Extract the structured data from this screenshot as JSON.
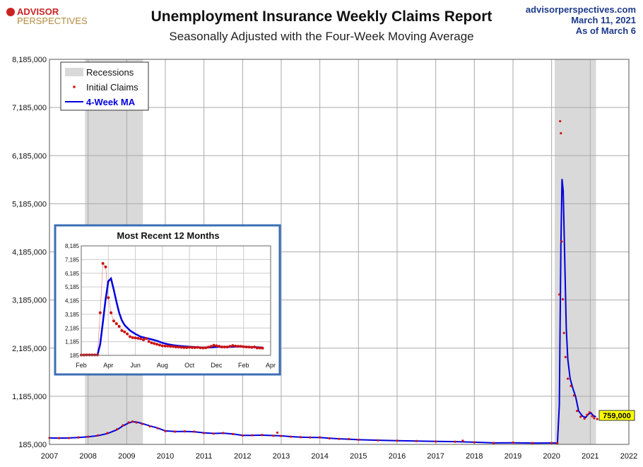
{
  "header": {
    "logo_top": "ADVISOR",
    "logo_bottom": "PERSPECTIVES",
    "title": "Unemployment Insurance Weekly Claims Report",
    "subtitle": "Seasonally Adjusted with the Four-Week Moving Average",
    "site": "advisorperspectives.com",
    "date": "March 11, 2021",
    "as_of": "As of March 6"
  },
  "colors": {
    "claims": "#cc1111",
    "ma": "#0000dd",
    "recession": "#d9d9d9",
    "callout_bg": "#ffff00",
    "site_text": "#1c3a8a",
    "inset_border": "#3a6fb5"
  },
  "chart_data": [
    {
      "type": "line",
      "title": "Unemployment Insurance Weekly Claims Report",
      "subtitle": "Seasonally Adjusted with the Four-Week Moving Average",
      "xlabel": "",
      "ylabel": "",
      "xlim": [
        2007,
        2022
      ],
      "ylim": [
        185000,
        8185000
      ],
      "x_ticks": [
        "2007",
        "2008",
        "2009",
        "2010",
        "2011",
        "2012",
        "2013",
        "2014",
        "2015",
        "2016",
        "2017",
        "2018",
        "2019",
        "2020",
        "2021",
        "2022"
      ],
      "y_ticks": [
        "185,000",
        "1,185,000",
        "2,185,000",
        "3,185,000",
        "4,185,000",
        "5,185,000",
        "6,185,000",
        "7,185,000",
        "8,185,000"
      ],
      "grid": true,
      "legend_position": "top-left",
      "legend": [
        "Recessions",
        "Initial Claims",
        "4-Week MA"
      ],
      "recessions": [
        [
          2007.92,
          2009.42
        ],
        [
          2020.08,
          2021.15
        ]
      ],
      "callout": "759,000",
      "series": [
        {
          "name": "Initial Claims",
          "style": "points",
          "x": [
            2007.0,
            2007.25,
            2007.5,
            2007.75,
            2008.0,
            2008.25,
            2008.5,
            2008.75,
            2008.9,
            2009.05,
            2009.15,
            2009.25,
            2009.4,
            2009.6,
            2009.8,
            2010.0,
            2010.25,
            2010.5,
            2010.75,
            2011.0,
            2011.25,
            2011.5,
            2011.75,
            2012.0,
            2012.25,
            2012.5,
            2012.8,
            2012.9,
            2013.0,
            2013.25,
            2013.5,
            2013.75,
            2014.0,
            2014.25,
            2014.5,
            2014.75,
            2015.0,
            2015.5,
            2016.0,
            2016.5,
            2017.0,
            2017.5,
            2017.7,
            2018.0,
            2018.5,
            2019.0,
            2019.5,
            2020.0,
            2020.15,
            2020.2,
            2020.22,
            2020.24,
            2020.26,
            2020.29,
            2020.32,
            2020.36,
            2020.42,
            2020.5,
            2020.58,
            2020.66,
            2020.75,
            2020.85,
            2020.92,
            2020.98,
            2021.05,
            2021.1,
            2021.18
          ],
          "values": [
            320000,
            315000,
            318000,
            330000,
            345000,
            370000,
            420000,
            500000,
            580000,
            640000,
            660000,
            640000,
            610000,
            560000,
            520000,
            460000,
            450000,
            455000,
            450000,
            420000,
            410000,
            420000,
            400000,
            370000,
            375000,
            380000,
            365000,
            430000,
            360000,
            345000,
            335000,
            330000,
            330000,
            310000,
            300000,
            295000,
            280000,
            270000,
            262000,
            255000,
            245000,
            240000,
            260000,
            228000,
            215000,
            222000,
            212000,
            215000,
            210000,
            3300000,
            6900000,
            6650000,
            4400000,
            3200000,
            2500000,
            2000000,
            1550000,
            1400000,
            1200000,
            880000,
            760000,
            720000,
            800000,
            850000,
            770000,
            730000,
            712000
          ]
        },
        {
          "name": "4-Week MA",
          "style": "line",
          "x": [
            2007.0,
            2007.25,
            2007.5,
            2007.75,
            2008.0,
            2008.25,
            2008.5,
            2008.75,
            2008.9,
            2009.05,
            2009.15,
            2009.25,
            2009.4,
            2009.6,
            2009.8,
            2010.0,
            2010.25,
            2010.5,
            2010.75,
            2011.0,
            2011.25,
            2011.5,
            2011.75,
            2012.0,
            2012.25,
            2012.5,
            2012.8,
            2013.0,
            2013.25,
            2013.5,
            2013.75,
            2014.0,
            2014.25,
            2014.5,
            2014.75,
            2015.0,
            2015.5,
            2016.0,
            2016.5,
            2017.0,
            2017.5,
            2018.0,
            2018.5,
            2019.0,
            2019.5,
            2020.0,
            2020.15,
            2020.2,
            2020.22,
            2020.24,
            2020.27,
            2020.3,
            2020.34,
            2020.38,
            2020.42,
            2020.48,
            2020.55,
            2020.62,
            2020.7,
            2020.8,
            2020.88,
            2020.95,
            2021.02,
            2021.08,
            2021.15
          ],
          "values": [
            318000,
            316000,
            318000,
            328000,
            342000,
            365000,
            410000,
            490000,
            570000,
            630000,
            655000,
            650000,
            620000,
            570000,
            525000,
            465000,
            452000,
            455000,
            448000,
            425000,
            412000,
            418000,
            402000,
            372000,
            373000,
            378000,
            368000,
            362000,
            346000,
            336000,
            331000,
            328000,
            312000,
            301000,
            294000,
            282000,
            271000,
            263000,
            256000,
            246000,
            242000,
            230000,
            216000,
            218000,
            213000,
            214000,
            213000,
            1000000,
            2700000,
            4300000,
            5700000,
            5450000,
            4000000,
            2600000,
            1950000,
            1550000,
            1350000,
            1180000,
            880000,
            770000,
            745000,
            810000,
            840000,
            780000,
            759000
          ]
        }
      ]
    },
    {
      "type": "line",
      "title": "Most Recent 12 Months",
      "xlabel": "",
      "ylabel": "",
      "x_ticks": [
        "Feb",
        "Apr",
        "Jun",
        "Aug",
        "Oct",
        "Dec",
        "Feb",
        "Apr"
      ],
      "y_ticks": [
        "185",
        "1,185",
        "2,185",
        "3,185",
        "4,185",
        "5,185",
        "6,185",
        "7,185",
        "8,185"
      ],
      "ylim": [
        185,
        8185
      ],
      "xlim": [
        0,
        70
      ],
      "grid": true,
      "series": [
        {
          "name": "Initial Claims",
          "style": "points",
          "x": [
            0,
            1,
            2,
            3,
            4,
            5,
            6,
            7,
            8,
            9,
            10,
            11,
            12,
            13,
            14,
            15,
            16,
            17,
            18,
            19,
            20,
            21,
            22,
            23,
            24,
            25,
            26,
            27,
            28,
            29,
            30,
            31,
            32,
            33,
            34,
            35,
            36,
            37,
            38,
            39,
            40,
            41,
            42,
            43,
            44,
            45,
            46,
            47,
            48,
            49,
            50,
            51,
            52,
            53,
            54,
            55,
            56,
            57,
            58,
            59,
            60,
            61,
            62,
            63,
            64,
            65,
            66,
            67
          ],
          "values": [
            210,
            212,
            215,
            216,
            215,
            218,
            220,
            3300,
            6900,
            6650,
            4400,
            3300,
            2700,
            2500,
            2300,
            2000,
            1900,
            1750,
            1550,
            1480,
            1460,
            1430,
            1400,
            1320,
            1420,
            1200,
            1100,
            1050,
            1000,
            940,
            880,
            870,
            860,
            840,
            830,
            800,
            790,
            770,
            760,
            750,
            770,
            760,
            750,
            770,
            740,
            730,
            740,
            790,
            840,
            920,
            880,
            850,
            800,
            800,
            800,
            840,
            900,
            860,
            850,
            840,
            820,
            800,
            790,
            770,
            800,
            730,
            730,
            712
          ]
        },
        {
          "name": "4-Week MA",
          "style": "line",
          "x": [
            0,
            2,
            4,
            6,
            7,
            8,
            9,
            10,
            11,
            12,
            13,
            14,
            15,
            16,
            18,
            20,
            22,
            24,
            26,
            28,
            30,
            32,
            34,
            36,
            38,
            40,
            42,
            44,
            46,
            48,
            50,
            52,
            54,
            56,
            58,
            60,
            62,
            64,
            66,
            67
          ],
          "values": [
            212,
            214,
            215,
            217,
            1000,
            2600,
            4300,
            5600,
            5800,
            5000,
            4100,
            3300,
            2750,
            2400,
            2000,
            1750,
            1550,
            1450,
            1350,
            1250,
            1100,
            1000,
            930,
            880,
            840,
            820,
            790,
            770,
            760,
            770,
            800,
            810,
            800,
            810,
            830,
            820,
            800,
            790,
            770,
            759
          ]
        }
      ]
    }
  ]
}
